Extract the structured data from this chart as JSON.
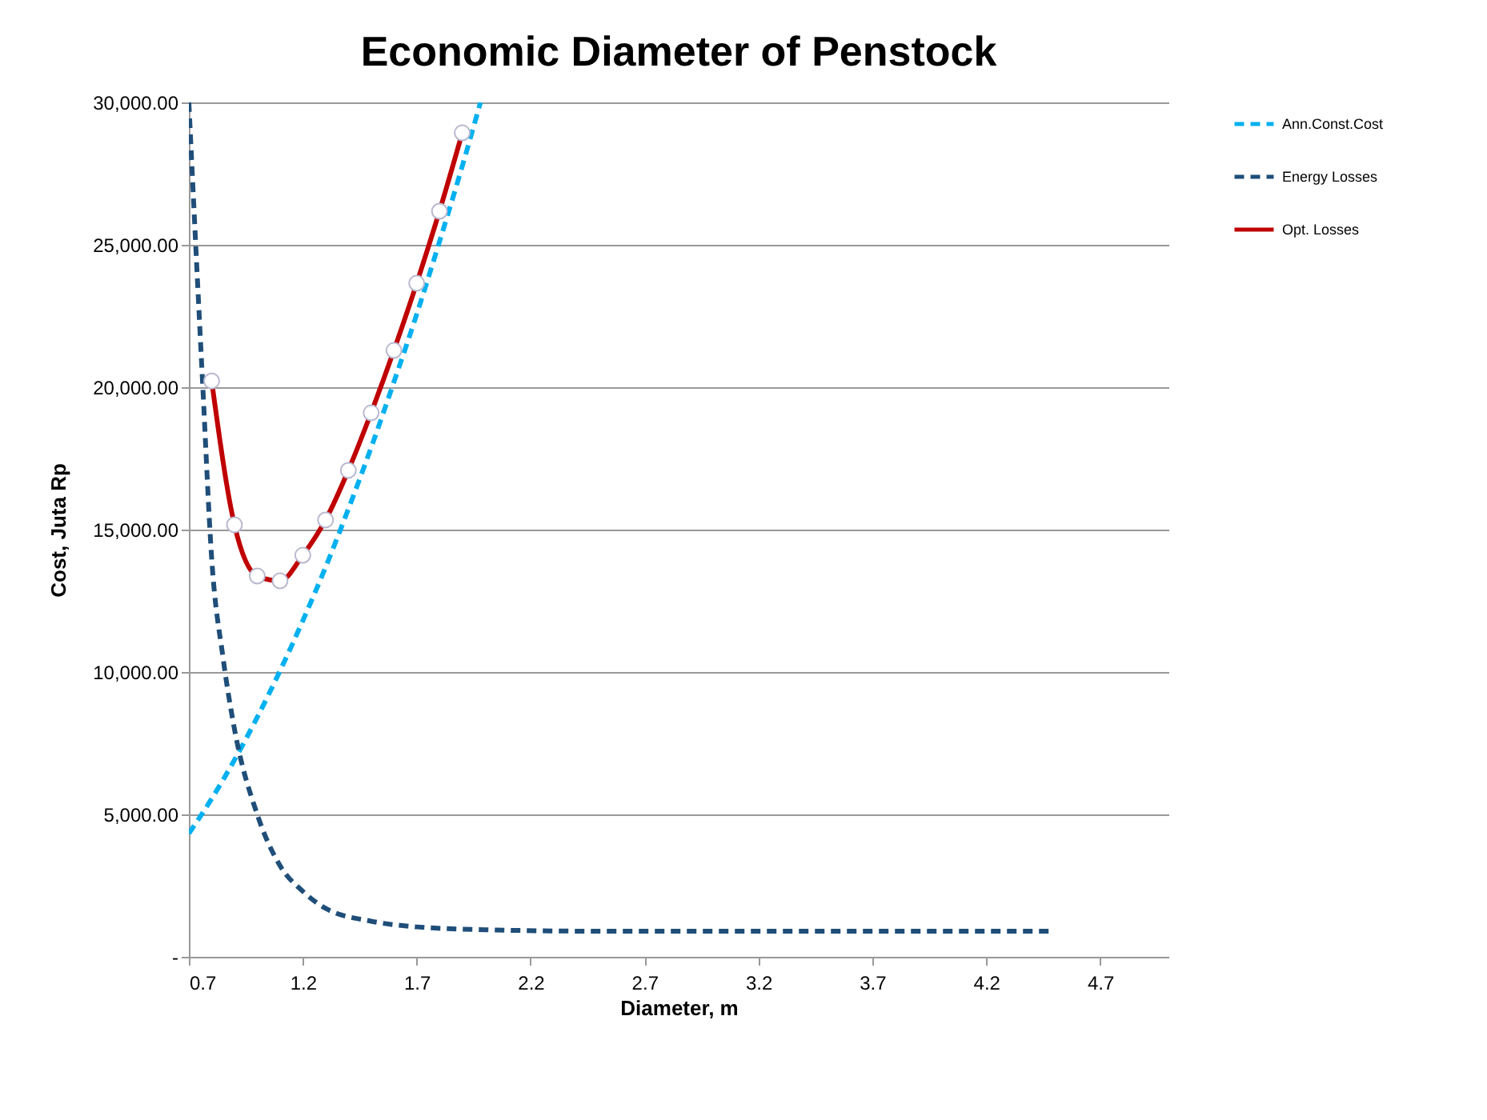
{
  "chart_data": {
    "type": "line",
    "title": "Economic Diameter of Penstock",
    "xlabel": "Diameter, m",
    "ylabel": "Cost, Juta Rp",
    "xlim": [
      0.7,
      5.0
    ],
    "xticks": [
      0.7,
      1.2,
      1.7,
      2.2,
      2.7,
      3.2,
      3.7,
      4.2,
      4.7
    ],
    "ylim": [
      0,
      30000
    ],
    "yticks": [
      {
        "value": 0,
        "label": "-"
      },
      {
        "value": 5000,
        "label": "5,000.00"
      },
      {
        "value": 10000,
        "label": "10,000.00"
      },
      {
        "value": 15000,
        "label": "15,000.00"
      },
      {
        "value": 20000,
        "label": "20,000.00"
      },
      {
        "value": 25000,
        "label": "25,000.00"
      },
      {
        "value": 30000,
        "label": "30,000.00"
      }
    ],
    "grid": "y",
    "legend": "right",
    "series": [
      {
        "name": "Ann.Const.Cost",
        "color": "#00b0f0",
        "line_style": "dashed",
        "marker": "none",
        "x": [
          0.7,
          0.8,
          0.9,
          1.0,
          1.1,
          1.2,
          1.3,
          1.4,
          1.5,
          1.6,
          1.7,
          1.8,
          1.9,
          1.98
        ],
        "values": [
          4330,
          5550,
          6910,
          8410,
          10040,
          11800,
          13680,
          15720,
          17880,
          20180,
          22560,
          25110,
          27760,
          30000
        ]
      },
      {
        "name": "Energy Losses",
        "color": "#1f4e79",
        "line_style": "dashed",
        "marker": "none",
        "x": [
          0.7,
          0.73,
          0.76,
          0.8,
          0.85,
          0.9,
          1.0,
          1.1,
          1.2,
          1.3,
          1.5,
          1.7,
          2.0,
          2.5,
          3.0,
          3.5,
          4.0,
          4.5
        ],
        "values": [
          30000,
          25000,
          20200,
          14000,
          10500,
          8000,
          5000,
          3200,
          2300,
          1700,
          1250,
          1050,
          950,
          900,
          900,
          900,
          900,
          900
        ]
      },
      {
        "name": "Opt. Losses",
        "color": "#c00000",
        "line_style": "solid",
        "marker": "circle",
        "x": [
          0.8,
          0.9,
          1.0,
          1.1,
          1.2,
          1.3,
          1.4,
          1.5,
          1.6,
          1.7,
          1.8,
          1.9
        ],
        "values": [
          20220,
          15170,
          13370,
          13200,
          14100,
          15340,
          17080,
          19100,
          21290,
          23650,
          26180,
          28930
        ]
      }
    ]
  }
}
